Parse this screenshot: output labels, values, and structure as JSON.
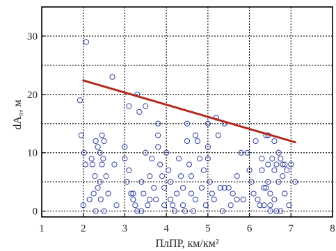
{
  "chart_data": {
    "type": "scatter",
    "xlabel": "ПлПР, км/км²",
    "ylabel": "dA₀, м",
    "xlim": [
      1,
      8
    ],
    "ylim": [
      -1,
      35
    ],
    "x_ticks": [
      1,
      2,
      3,
      4,
      5,
      6,
      7,
      8
    ],
    "y_ticks": [
      0,
      10,
      20,
      30
    ],
    "grid": true,
    "marker_color": "#2e3fa0",
    "trend_color": "#b22a1c",
    "trend_line": {
      "x": [
        2,
        7.1
      ],
      "y": [
        22.4,
        11.8
      ]
    },
    "points": [
      [
        1.92,
        19
      ],
      [
        1.95,
        13
      ],
      [
        2.07,
        29
      ],
      [
        2.02,
        10
      ],
      [
        2.05,
        8
      ],
      [
        2.0,
        1
      ],
      [
        2.2,
        9
      ],
      [
        2.22,
        8
      ],
      [
        2.25,
        3
      ],
      [
        2.3,
        12
      ],
      [
        2.35,
        11
      ],
      [
        2.4,
        10
      ],
      [
        2.45,
        13
      ],
      [
        2.5,
        12
      ],
      [
        2.45,
        8
      ],
      [
        2.4,
        5
      ],
      [
        2.55,
        6
      ],
      [
        2.3,
        0
      ],
      [
        2.5,
        0
      ],
      [
        2.6,
        3
      ],
      [
        2.7,
        23
      ],
      [
        2.75,
        8
      ],
      [
        2.8,
        1
      ],
      [
        2.15,
        2
      ],
      [
        2.28,
        6
      ],
      [
        2.35,
        4
      ],
      [
        2.48,
        9
      ],
      [
        2.42,
        2
      ],
      [
        3.0,
        11
      ],
      [
        3.0,
        9
      ],
      [
        3.05,
        5
      ],
      [
        3.1,
        18
      ],
      [
        3.1,
        7
      ],
      [
        3.15,
        3
      ],
      [
        3.2,
        2
      ],
      [
        3.25,
        1
      ],
      [
        3.3,
        20
      ],
      [
        3.35,
        17
      ],
      [
        3.4,
        0
      ],
      [
        3.4,
        5
      ],
      [
        3.45,
        3
      ],
      [
        3.5,
        18
      ],
      [
        3.5,
        10
      ],
      [
        3.55,
        1
      ],
      [
        3.6,
        6
      ],
      [
        3.65,
        9
      ],
      [
        3.7,
        4
      ],
      [
        3.75,
        2
      ],
      [
        3.8,
        15
      ],
      [
        3.8,
        13
      ],
      [
        3.8,
        11
      ],
      [
        3.85,
        8
      ],
      [
        3.9,
        6
      ],
      [
        3.95,
        4
      ],
      [
        3.95,
        1
      ],
      [
        3.6,
        2
      ],
      [
        3.3,
        0
      ],
      [
        3.2,
        3
      ],
      [
        4.0,
        10
      ],
      [
        4.05,
        7
      ],
      [
        4.1,
        5
      ],
      [
        4.1,
        2
      ],
      [
        4.15,
        1
      ],
      [
        4.2,
        0
      ],
      [
        4.25,
        3
      ],
      [
        4.3,
        9
      ],
      [
        4.35,
        6
      ],
      [
        4.4,
        1
      ],
      [
        4.5,
        15
      ],
      [
        4.5,
        12
      ],
      [
        4.55,
        8
      ],
      [
        4.6,
        6
      ],
      [
        4.6,
        3
      ],
      [
        4.7,
        2
      ],
      [
        4.7,
        13
      ],
      [
        4.75,
        12
      ],
      [
        4.8,
        9
      ],
      [
        4.85,
        4
      ],
      [
        4.9,
        7
      ],
      [
        4.95,
        1
      ],
      [
        4.4,
        4
      ],
      [
        4.45,
        0
      ],
      [
        4.65,
        0
      ],
      [
        5.0,
        15
      ],
      [
        5.0,
        11
      ],
      [
        5.0,
        9
      ],
      [
        5.05,
        5
      ],
      [
        5.1,
        3
      ],
      [
        5.15,
        2
      ],
      [
        5.2,
        16
      ],
      [
        5.25,
        13
      ],
      [
        5.3,
        4
      ],
      [
        5.35,
        0
      ],
      [
        5.4,
        15
      ],
      [
        5.4,
        4
      ],
      [
        5.5,
        4
      ],
      [
        5.55,
        1
      ],
      [
        5.6,
        3
      ],
      [
        5.7,
        6
      ],
      [
        5.7,
        2
      ],
      [
        5.8,
        10
      ],
      [
        5.85,
        2
      ],
      [
        5.95,
        10
      ],
      [
        6.0,
        7
      ],
      [
        6.05,
        5
      ],
      [
        6.1,
        3
      ],
      [
        6.15,
        12
      ],
      [
        6.2,
        2
      ],
      [
        6.25,
        1
      ],
      [
        6.3,
        9
      ],
      [
        6.35,
        4
      ],
      [
        6.35,
        1
      ],
      [
        6.4,
        13
      ],
      [
        6.45,
        13
      ],
      [
        6.45,
        5
      ],
      [
        6.5,
        3
      ],
      [
        6.5,
        0
      ],
      [
        6.55,
        9
      ],
      [
        6.6,
        12
      ],
      [
        6.6,
        7
      ],
      [
        6.6,
        2
      ],
      [
        6.65,
        8
      ],
      [
        6.7,
        10
      ],
      [
        6.7,
        5
      ],
      [
        6.75,
        0
      ],
      [
        6.8,
        8
      ],
      [
        6.85,
        3
      ],
      [
        6.9,
        7
      ],
      [
        6.95,
        1
      ],
      [
        7.0,
        8
      ],
      [
        7.1,
        5
      ],
      [
        6.3,
        7
      ],
      [
        6.75,
        9
      ],
      [
        6.8,
        6
      ],
      [
        6.5,
        1
      ],
      [
        6.4,
        4
      ],
      [
        6.65,
        0
      ],
      [
        6.85,
        8
      ],
      [
        6.45,
        8
      ]
    ]
  }
}
